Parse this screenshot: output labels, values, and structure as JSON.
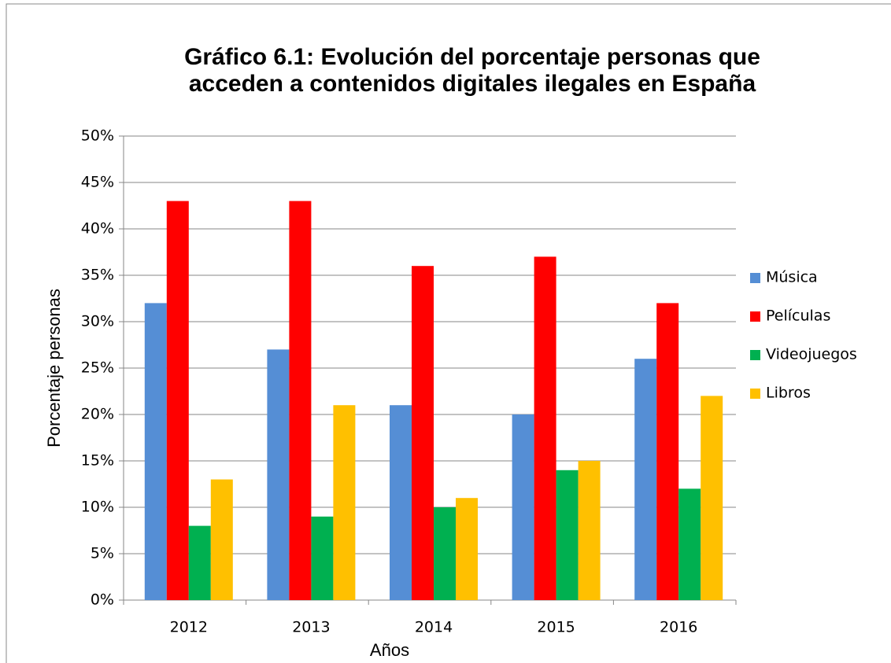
{
  "chart_data": {
    "type": "bar",
    "title": "Gráfico 6.1: Evolución del porcentaje personas que acceden a contenidos digitales ilegales en España",
    "categories": [
      "2012",
      "2013",
      "2014",
      "2015",
      "2016"
    ],
    "series": [
      {
        "name": "Música",
        "color": "#558ed5",
        "values": [
          32,
          27,
          21,
          20,
          26
        ]
      },
      {
        "name": "Películas",
        "color": "#ff0000",
        "values": [
          43,
          43,
          36,
          37,
          32
        ]
      },
      {
        "name": "Videojuegos",
        "color": "#00b050",
        "values": [
          8,
          9,
          10,
          14,
          12
        ]
      },
      {
        "name": "Libros",
        "color": "#ffc000",
        "values": [
          13,
          21,
          11,
          15,
          22
        ]
      }
    ],
    "xlabel": "Años",
    "ylabel": "Porcentaje personas",
    "ylim": [
      0,
      50
    ],
    "yticks": [
      {
        "value": 0,
        "label": "0%"
      },
      {
        "value": 5,
        "label": "5%"
      },
      {
        "value": 10,
        "label": "10%"
      },
      {
        "value": 15,
        "label": "15%"
      },
      {
        "value": 20,
        "label": "20%"
      },
      {
        "value": 25,
        "label": "25%"
      },
      {
        "value": 30,
        "label": "30%"
      },
      {
        "value": 35,
        "label": "35%"
      },
      {
        "value": 40,
        "label": "40%"
      },
      {
        "value": 45,
        "label": "45%"
      },
      {
        "value": 50,
        "label": "50%"
      }
    ],
    "grid": true,
    "legend": "right"
  }
}
